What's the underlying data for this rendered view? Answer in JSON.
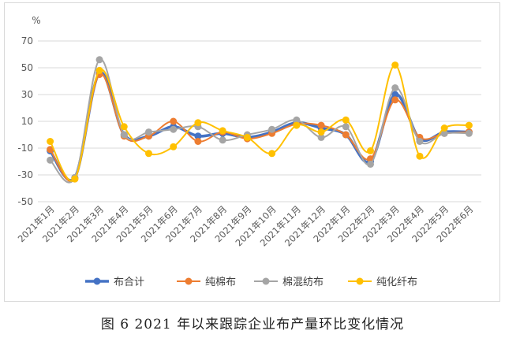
{
  "caption": "图 6   2021 年以来跟踪企业布产量环比变化情况",
  "chart_data": {
    "type": "line",
    "title": "",
    "ylabel": "%",
    "xlabel": "",
    "ylim": [
      -50,
      70
    ],
    "yticks": [
      70,
      50,
      30,
      10,
      -10,
      -30,
      -50
    ],
    "grid": "horizontal",
    "legend": "bottom",
    "categories": [
      "2021年1月",
      "2021年2月",
      "2021年3月",
      "2021年4月",
      "2021年5月",
      "2021年6月",
      "2021年7月",
      "2021年8月",
      "2021年9月",
      "2021年10月",
      "2021年11月",
      "2021年12月",
      "2022年1月",
      "2022年2月",
      "2022年3月",
      "2022年4月",
      "2022年5月",
      "2022年6月"
    ],
    "series": [
      {
        "name": "布合计",
        "color": "#4472c4",
        "width": 3.5,
        "values": [
          -12,
          -32,
          46,
          0,
          -1,
          6,
          -1,
          1,
          -2,
          2,
          9,
          5,
          0,
          -20,
          30,
          -3,
          2,
          2
        ]
      },
      {
        "name": "纯棉布",
        "color": "#ed7d31",
        "width": 2,
        "values": [
          -11,
          -33,
          45,
          -1,
          -1,
          10,
          -5,
          2,
          -3,
          1,
          8,
          7,
          0,
          -18,
          26,
          -2,
          1,
          2
        ]
      },
      {
        "name": "棉混纺布",
        "color": "#a5a5a5",
        "width": 2,
        "values": [
          -19,
          -32,
          56,
          0,
          2,
          4,
          6,
          -4,
          0,
          4,
          11,
          -2,
          6,
          -22,
          35,
          -5,
          1,
          1
        ]
      },
      {
        "name": "纯化纤布",
        "color": "#ffc000",
        "width": 2,
        "values": [
          -5,
          -33,
          48,
          6,
          -14,
          -9,
          9,
          3,
          -2,
          -14,
          7,
          2,
          11,
          -12,
          52,
          -16,
          5,
          7
        ]
      }
    ]
  }
}
